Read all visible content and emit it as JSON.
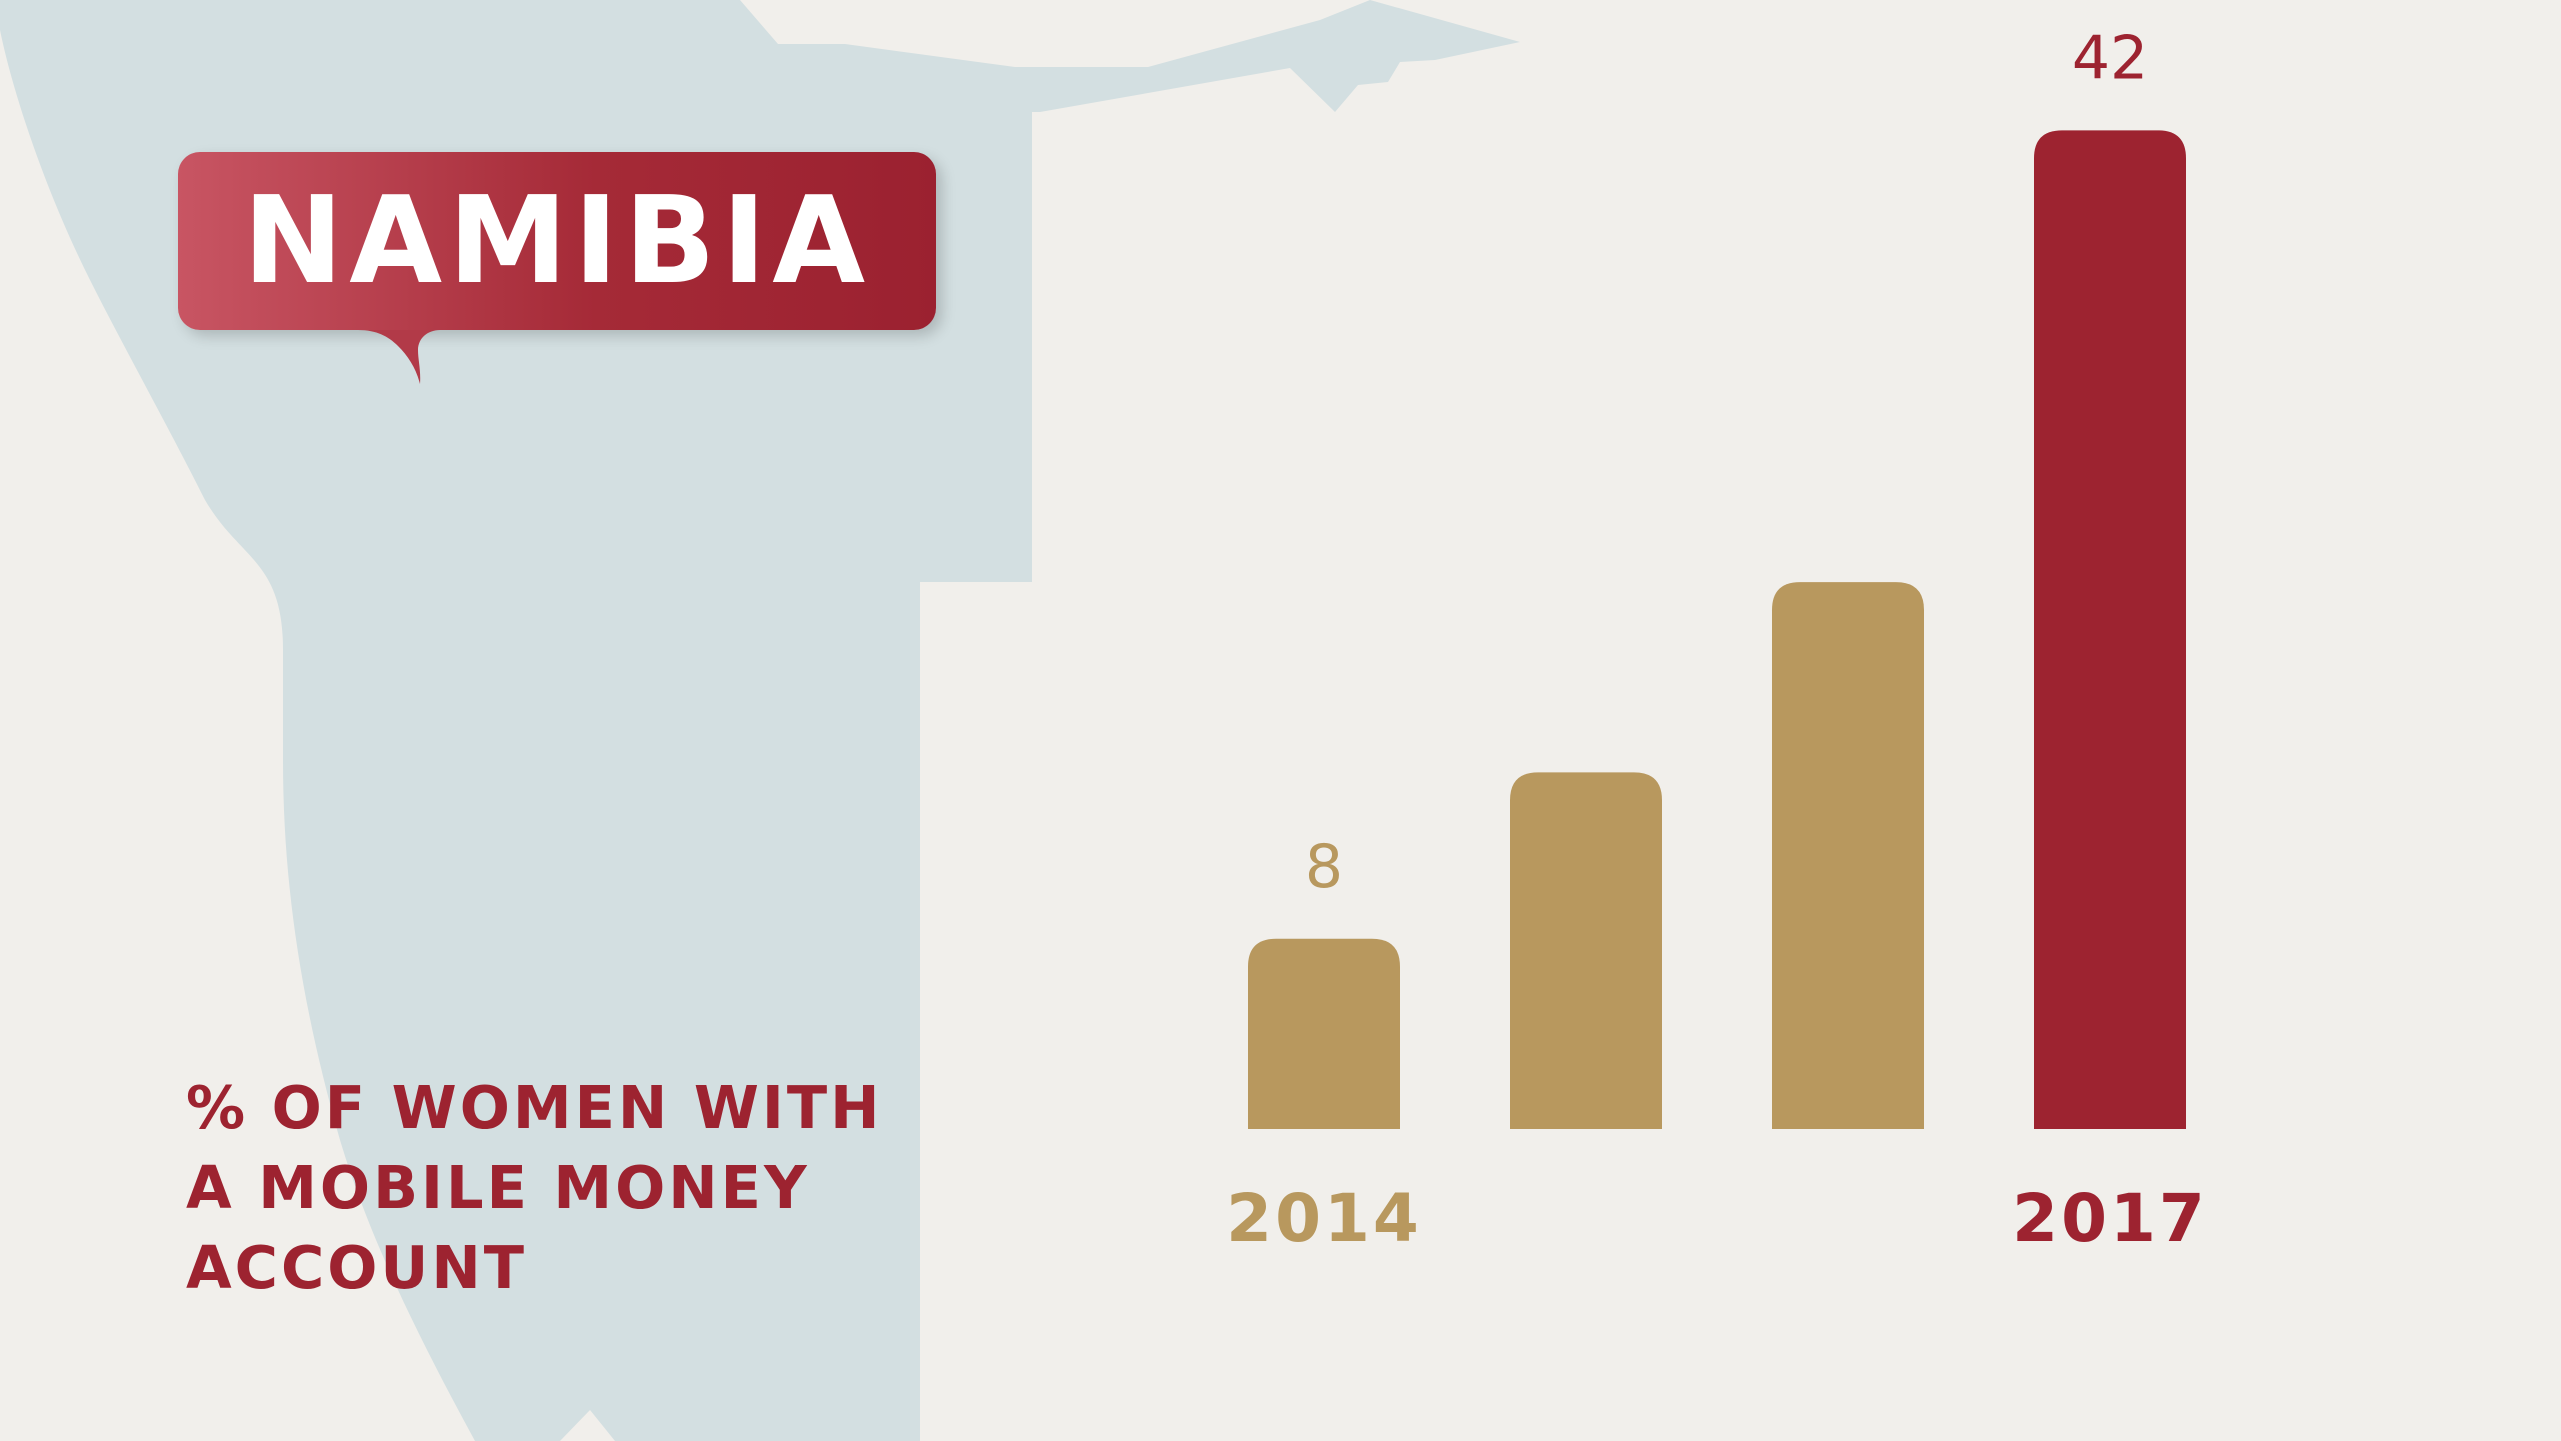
{
  "country": "NAMIBIA",
  "caption_lines": [
    "% OF WOMEN WITH",
    "A MOBILE MONEY",
    "ACCOUNT"
  ],
  "colors": {
    "background": "#f1efeb",
    "map": "#d3dfe1",
    "gold": "#b8985e",
    "red": "#9d2330"
  },
  "chart_data": {
    "type": "bar",
    "categories": [
      "2014",
      "",
      "",
      "2017"
    ],
    "values": [
      8,
      15,
      23,
      42
    ],
    "data_labels": [
      "8",
      "",
      "",
      "42"
    ],
    "highlight_index": 3,
    "ylim": [
      0,
      45
    ],
    "title": "",
    "xlabel": "",
    "ylabel": ""
  }
}
